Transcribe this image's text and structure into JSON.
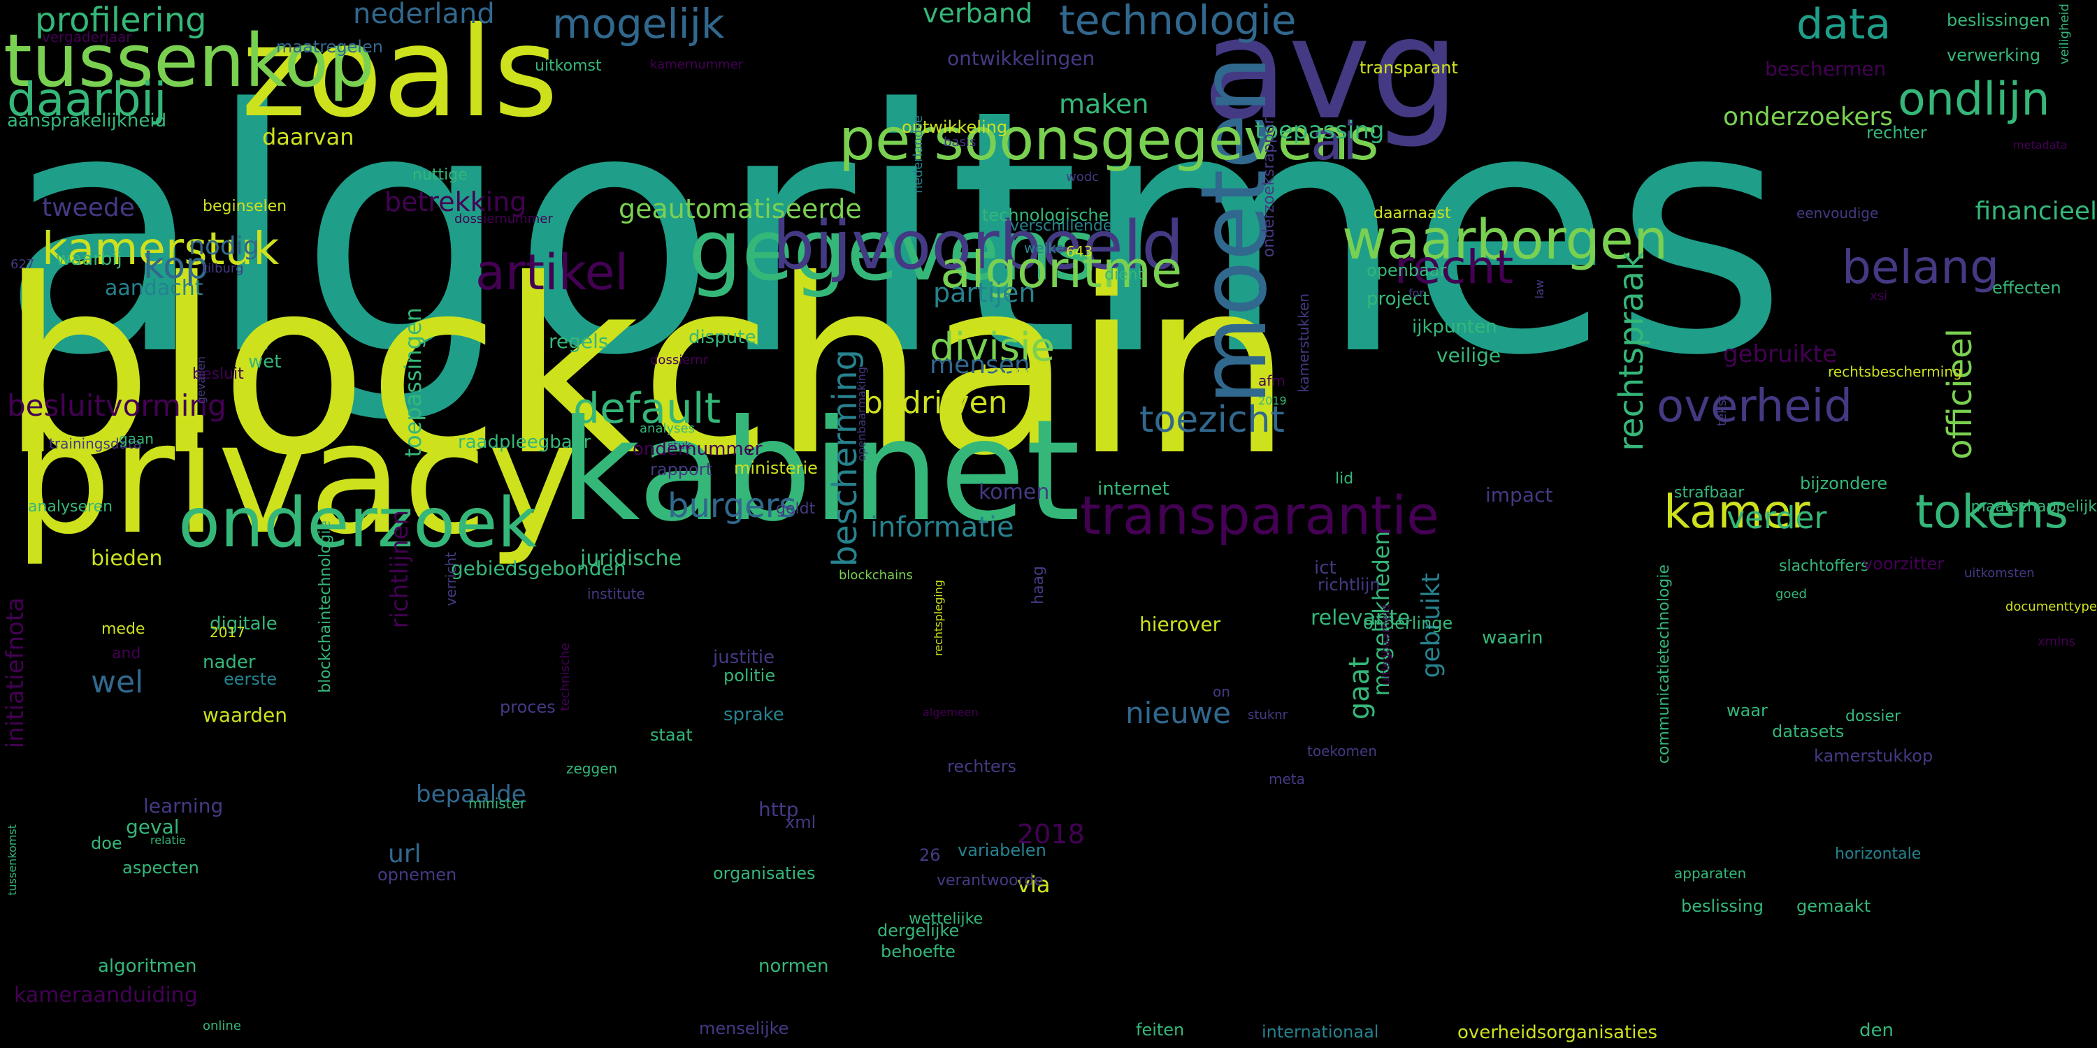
{
  "palette": {
    "yellow": "#cde11d",
    "lime": "#7ad151",
    "green": "#35b779",
    "teal": "#1f9e89",
    "cyan": "#26828e",
    "blue": "#31688e",
    "indigo": "#443a83",
    "purple": "#440154"
  },
  "words": [
    {
      "text": "algoritmes",
      "color": "teal",
      "vertical": false
    },
    {
      "text": "blockchain",
      "color": "yellow",
      "vertical": false
    },
    {
      "text": "privacy",
      "color": "yellow",
      "vertical": false
    },
    {
      "text": "kabinet",
      "color": "green",
      "vertical": false
    },
    {
      "text": "zoals",
      "color": "yellow",
      "vertical": false
    },
    {
      "text": "avg",
      "color": "indigo",
      "vertical": false
    },
    {
      "text": "tussenkop",
      "color": "lime",
      "vertical": false
    },
    {
      "text": "gegevens",
      "color": "green",
      "vertical": false
    },
    {
      "text": "bijvoorbeeld",
      "color": "indigo",
      "vertical": false
    },
    {
      "text": "moeten",
      "color": "blue",
      "vertical": true
    },
    {
      "text": "onderzoek",
      "color": "green",
      "vertical": false
    },
    {
      "text": "persoonsgegevens",
      "color": "lime",
      "vertical": false
    },
    {
      "text": "waarborgen",
      "color": "lime",
      "vertical": false
    },
    {
      "text": "transparantie",
      "color": "purple",
      "vertical": false
    },
    {
      "text": "algoritme",
      "color": "lime",
      "vertical": false
    },
    {
      "text": "kamerstuk",
      "color": "yellow",
      "vertical": false
    },
    {
      "text": "mogelijk",
      "color": "blue",
      "vertical": false
    },
    {
      "text": "technologie",
      "color": "blue",
      "vertical": false
    },
    {
      "text": "data",
      "color": "teal",
      "vertical": false
    },
    {
      "text": "ondlijn",
      "color": "green",
      "vertical": false
    },
    {
      "text": "ai",
      "color": "indigo",
      "vertical": false
    },
    {
      "text": "artikel",
      "color": "purple",
      "vertical": false
    },
    {
      "text": "recht",
      "color": "purple",
      "vertical": false
    },
    {
      "text": "belang",
      "color": "indigo",
      "vertical": false
    },
    {
      "text": "overheid",
      "color": "indigo",
      "vertical": false
    },
    {
      "text": "tokens",
      "color": "green",
      "vertical": false
    },
    {
      "text": "kamer",
      "color": "yellow",
      "vertical": false
    },
    {
      "text": "daarbij",
      "color": "green",
      "vertical": false
    },
    {
      "text": "profilering",
      "color": "green",
      "vertical": false
    },
    {
      "text": "nederland",
      "color": "blue",
      "vertical": false
    },
    {
      "text": "kop",
      "color": "blue",
      "vertical": false
    },
    {
      "text": "divisie",
      "color": "lime",
      "vertical": false
    },
    {
      "text": "default",
      "color": "green",
      "vertical": false
    },
    {
      "text": "toezicht",
      "color": "blue",
      "vertical": false
    },
    {
      "text": "burgers",
      "color": "blue",
      "vertical": false
    },
    {
      "text": "bedrijven",
      "color": "yellow",
      "vertical": false
    },
    {
      "text": "besluitvorming",
      "color": "purple",
      "vertical": false
    },
    {
      "text": "beschermen",
      "color": "purple",
      "vertical": false
    },
    {
      "text": "officieel",
      "color": "lime",
      "vertical": true
    },
    {
      "text": "bescherming",
      "color": "cyan",
      "vertical": true
    },
    {
      "text": "rechtspraak",
      "color": "green",
      "vertical": true
    },
    {
      "text": "informatie",
      "color": "cyan",
      "vertical": false
    },
    {
      "text": "verband",
      "color": "green",
      "vertical": false
    },
    {
      "text": "maken",
      "color": "green",
      "vertical": false
    },
    {
      "text": "toepassing",
      "color": "green",
      "vertical": false
    },
    {
      "text": "onderzoekers",
      "color": "lime",
      "vertical": false
    },
    {
      "text": "financieel",
      "color": "green",
      "vertical": false
    },
    {
      "text": "geautomatiseerde",
      "color": "lime",
      "vertical": false
    },
    {
      "text": "betrekking",
      "color": "purple",
      "vertical": false
    },
    {
      "text": "daarvan",
      "color": "yellow",
      "vertical": false
    },
    {
      "text": "tweede",
      "color": "indigo",
      "vertical": false
    },
    {
      "text": "nodig",
      "color": "blue",
      "vertical": false
    },
    {
      "text": "partijen",
      "color": "cyan",
      "vertical": false
    },
    {
      "text": "mensen",
      "color": "blue",
      "vertical": false
    },
    {
      "text": "gebruikte",
      "color": "purple",
      "vertical": false
    },
    {
      "text": "verder",
      "color": "green",
      "vertical": false
    },
    {
      "text": "nieuwe",
      "color": "blue",
      "vertical": false
    },
    {
      "text": "wel",
      "color": "blue",
      "vertical": false
    },
    {
      "text": "2018",
      "color": "purple",
      "vertical": false
    },
    {
      "text": "url",
      "color": "blue",
      "vertical": false
    },
    {
      "text": "via",
      "color": "yellow",
      "vertical": false
    },
    {
      "text": "bepaalde",
      "color": "blue",
      "vertical": false
    },
    {
      "text": "gaat",
      "color": "green",
      "vertical": true
    },
    {
      "text": "gebruikt",
      "color": "cyan",
      "vertical": true
    },
    {
      "text": "mogelijkheden",
      "color": "green",
      "vertical": true
    },
    {
      "text": "richtlijnen",
      "color": "purple",
      "vertical": true
    },
    {
      "text": "toepassingen",
      "color": "green",
      "vertical": true
    },
    {
      "text": "initiatiefnota",
      "color": "purple",
      "vertical": true
    },
    {
      "text": "vergaderjaar",
      "color": "purple",
      "vertical": false
    },
    {
      "text": "maatregelen",
      "color": "blue",
      "vertical": false
    },
    {
      "text": "uitkomst",
      "color": "green",
      "vertical": false
    },
    {
      "text": "kamernummer",
      "color": "purple",
      "vertical": false
    },
    {
      "text": "ontwikkelingen",
      "color": "indigo",
      "vertical": false
    },
    {
      "text": "transparant",
      "color": "yellow",
      "vertical": false
    },
    {
      "text": "beslissingen",
      "color": "green",
      "vertical": false
    },
    {
      "text": "verwerking",
      "color": "green",
      "vertical": false
    },
    {
      "text": "aansprakelijkheid",
      "color": "green",
      "vertical": false
    },
    {
      "text": "nuttige",
      "color": "green",
      "vertical": false
    },
    {
      "text": "ontwikkeling",
      "color": "yellow",
      "vertical": false
    },
    {
      "text": "basis",
      "color": "indigo",
      "vertical": false
    },
    {
      "text": "rechter",
      "color": "green",
      "vertical": false
    },
    {
      "text": "metadata",
      "color": "purple",
      "vertical": false
    },
    {
      "text": "beginselen",
      "color": "yellow",
      "vertical": false
    },
    {
      "text": "technologische",
      "color": "green",
      "vertical": false
    },
    {
      "text": "wodc",
      "color": "indigo",
      "vertical": false
    },
    {
      "text": "daarnaast",
      "color": "yellow",
      "vertical": false
    },
    {
      "text": "eenvoudige",
      "color": "indigo",
      "vertical": false
    },
    {
      "text": "dossiernummer",
      "color": "purple",
      "vertical": false
    },
    {
      "text": "verschillende",
      "color": "cyan",
      "vertical": false
    },
    {
      "text": "waarbij",
      "color": "green",
      "vertical": false
    },
    {
      "text": "tilburg",
      "color": "indigo",
      "vertical": false
    },
    {
      "text": "welke",
      "color": "cyan",
      "vertical": false
    },
    {
      "text": "643",
      "color": "yellow",
      "vertical": false
    },
    {
      "text": "dient",
      "color": "green",
      "vertical": false
    },
    {
      "text": "openbaar",
      "color": "green",
      "vertical": false
    },
    {
      "text": "project",
      "color": "green",
      "vertical": false
    },
    {
      "text": "for",
      "color": "indigo",
      "vertical": false
    },
    {
      "text": "effecten",
      "color": "green",
      "vertical": false
    },
    {
      "text": "xsi",
      "color": "purple",
      "vertical": false
    },
    {
      "text": "627",
      "color": "indigo",
      "vertical": false
    },
    {
      "text": "aandacht",
      "color": "cyan",
      "vertical": false
    },
    {
      "text": "besluit",
      "color": "purple",
      "vertical": false
    },
    {
      "text": "dossiernr",
      "color": "purple",
      "vertical": false
    },
    {
      "text": "dispute",
      "color": "green",
      "vertical": false
    },
    {
      "text": "ijkpunten",
      "color": "green",
      "vertical": false
    },
    {
      "text": "veilige",
      "color": "green",
      "vertical": false
    },
    {
      "text": "regels",
      "color": "green",
      "vertical": false
    },
    {
      "text": "kansen",
      "color": "yellow",
      "vertical": false
    },
    {
      "text": "afm",
      "color": "purple",
      "vertical": false
    },
    {
      "text": "2019",
      "color": "green",
      "vertical": false
    },
    {
      "text": "rechtsbescherming",
      "color": "yellow",
      "vertical": false
    },
    {
      "text": "wet",
      "color": "green",
      "vertical": false
    },
    {
      "text": "trainingsdata",
      "color": "indigo",
      "vertical": false
    },
    {
      "text": "gaan",
      "color": "green",
      "vertical": false
    },
    {
      "text": "raadpleegbaar",
      "color": "green",
      "vertical": false
    },
    {
      "text": "analyses",
      "color": "green",
      "vertical": false
    },
    {
      "text": "stuk",
      "color": "indigo",
      "vertical": false
    },
    {
      "text": "ondernummer",
      "color": "purple",
      "vertical": false
    },
    {
      "text": "rapport",
      "color": "indigo",
      "vertical": false
    },
    {
      "text": "ministerie",
      "color": "yellow",
      "vertical": false
    },
    {
      "text": "komen",
      "color": "indigo",
      "vertical": false
    },
    {
      "text": "internet",
      "color": "green",
      "vertical": false
    },
    {
      "text": "lid",
      "color": "green",
      "vertical": false
    },
    {
      "text": "impact",
      "color": "indigo",
      "vertical": false
    },
    {
      "text": "strafbaar",
      "color": "green",
      "vertical": false
    },
    {
      "text": "bijzondere",
      "color": "green",
      "vertical": false
    },
    {
      "text": "maatschappelijk",
      "color": "green",
      "vertical": false
    },
    {
      "text": "analyseren",
      "color": "green",
      "vertical": false
    },
    {
      "text": "geldt",
      "color": "indigo",
      "vertical": false
    },
    {
      "text": "bieden",
      "color": "yellow",
      "vertical": false
    },
    {
      "text": "gebiedsgebonden",
      "color": "green",
      "vertical": false
    },
    {
      "text": "juridische",
      "color": "green",
      "vertical": false
    },
    {
      "text": "blockchains",
      "color": "lime",
      "vertical": false
    },
    {
      "text": "ict",
      "color": "indigo",
      "vertical": false
    },
    {
      "text": "richtlijn",
      "color": "indigo",
      "vertical": false
    },
    {
      "text": "relevante",
      "color": "green",
      "vertical": false
    },
    {
      "text": "slachtoffers",
      "color": "green",
      "vertical": false
    },
    {
      "text": "uitkomsten",
      "color": "indigo",
      "vertical": false
    },
    {
      "text": "voorzitter",
      "color": "purple",
      "vertical": false
    },
    {
      "text": "institute",
      "color": "indigo",
      "vertical": false
    },
    {
      "text": "goed",
      "color": "green",
      "vertical": false
    },
    {
      "text": "documenttype",
      "color": "yellow",
      "vertical": false
    },
    {
      "text": "mede",
      "color": "yellow",
      "vertical": false
    },
    {
      "text": "digitale",
      "color": "green",
      "vertical": false
    },
    {
      "text": "2017",
      "color": "yellow",
      "vertical": false
    },
    {
      "text": "onderlinge",
      "color": "green",
      "vertical": false
    },
    {
      "text": "hierover",
      "color": "yellow",
      "vertical": false
    },
    {
      "text": "waarin",
      "color": "green",
      "vertical": false
    },
    {
      "text": "xmlns",
      "color": "purple",
      "vertical": false
    },
    {
      "text": "and",
      "color": "purple",
      "vertical": false
    },
    {
      "text": "nader",
      "color": "green",
      "vertical": false
    },
    {
      "text": "eerste",
      "color": "cyan",
      "vertical": false
    },
    {
      "text": "justitie",
      "color": "indigo",
      "vertical": false
    },
    {
      "text": "politie",
      "color": "green",
      "vertical": false
    },
    {
      "text": "on",
      "color": "indigo",
      "vertical": false
    },
    {
      "text": "waarden",
      "color": "yellow",
      "vertical": false
    },
    {
      "text": "proces",
      "color": "indigo",
      "vertical": false
    },
    {
      "text": "sprake",
      "color": "cyan",
      "vertical": false
    },
    {
      "text": "waar",
      "color": "green",
      "vertical": false
    },
    {
      "text": "dossier",
      "color": "green",
      "vertical": false
    },
    {
      "text": "datasets",
      "color": "green",
      "vertical": false
    },
    {
      "text": "staat",
      "color": "green",
      "vertical": false
    },
    {
      "text": "algemeen",
      "color": "purple",
      "vertical": false
    },
    {
      "text": "stuknr",
      "color": "indigo",
      "vertical": false
    },
    {
      "text": "toekomen",
      "color": "indigo",
      "vertical": false
    },
    {
      "text": "kamerstukkop",
      "color": "indigo",
      "vertical": false
    },
    {
      "text": "zeggen",
      "color": "green",
      "vertical": false
    },
    {
      "text": "meta",
      "color": "indigo",
      "vertical": false
    },
    {
      "text": "rechters",
      "color": "indigo",
      "vertical": false
    },
    {
      "text": "learning",
      "color": "indigo",
      "vertical": false
    },
    {
      "text": "minister",
      "color": "green",
      "vertical": false
    },
    {
      "text": "http",
      "color": "indigo",
      "vertical": false
    },
    {
      "text": "geval",
      "color": "green",
      "vertical": false
    },
    {
      "text": "relatie",
      "color": "green",
      "vertical": false
    },
    {
      "text": "xml",
      "color": "indigo",
      "vertical": false
    },
    {
      "text": "variabelen",
      "color": "cyan",
      "vertical": false
    },
    {
      "text": "horizontale",
      "color": "cyan",
      "vertical": false
    },
    {
      "text": "apparaten",
      "color": "green",
      "vertical": false
    },
    {
      "text": "doe",
      "color": "green",
      "vertical": false
    },
    {
      "text": "aspecten",
      "color": "green",
      "vertical": false
    },
    {
      "text": "26",
      "color": "indigo",
      "vertical": false
    },
    {
      "text": "opnemen",
      "color": "indigo",
      "vertical": false
    },
    {
      "text": "organisaties",
      "color": "green",
      "vertical": false
    },
    {
      "text": "verantwoorde",
      "color": "indigo",
      "vertical": false
    },
    {
      "text": "dergelijke",
      "color": "green",
      "vertical": false
    },
    {
      "text": "behoefte",
      "color": "green",
      "vertical": false
    },
    {
      "text": "beslissing",
      "color": "green",
      "vertical": false
    },
    {
      "text": "gemaakt",
      "color": "green",
      "vertical": false
    },
    {
      "text": "algoritmen",
      "color": "green",
      "vertical": false
    },
    {
      "text": "normen",
      "color": "green",
      "vertical": false
    },
    {
      "text": "wettelijke",
      "color": "green",
      "vertical": false
    },
    {
      "text": "kameraanduiding",
      "color": "purple",
      "vertical": false
    },
    {
      "text": "online",
      "color": "green",
      "vertical": false
    },
    {
      "text": "menselijke",
      "color": "indigo",
      "vertical": false
    },
    {
      "text": "feiten",
      "color": "green",
      "vertical": false
    },
    {
      "text": "internationaal",
      "color": "cyan",
      "vertical": false
    },
    {
      "text": "overheidsorganisaties",
      "color": "yellow",
      "vertical": false
    },
    {
      "text": "den",
      "color": "green",
      "vertical": false
    },
    {
      "text": "veiligheid",
      "color": "green",
      "vertical": true
    },
    {
      "text": "nederlandse",
      "color": "cyan",
      "vertical": true
    },
    {
      "text": "onderzoeksrapport",
      "color": "indigo",
      "vertical": true
    },
    {
      "text": "kamerstukken",
      "color": "indigo",
      "vertical": true
    },
    {
      "text": "law",
      "color": "indigo",
      "vertical": true
    },
    {
      "text": "tekst",
      "color": "indigo",
      "vertical": true
    },
    {
      "text": "gevallen",
      "color": "indigo",
      "vertical": true
    },
    {
      "text": "openbaarmaking",
      "color": "indigo",
      "vertical": true
    },
    {
      "text": "blockchaintechnologie",
      "color": "green",
      "vertical": true
    },
    {
      "text": "verricht",
      "color": "indigo",
      "vertical": true
    },
    {
      "text": "technische",
      "color": "purple",
      "vertical": true
    },
    {
      "text": "rechtspleging",
      "color": "yellow",
      "vertical": true
    },
    {
      "text": "haag",
      "color": "indigo",
      "vertical": true
    },
    {
      "text": "uitlegbaarheid",
      "color": "purple",
      "vertical": true
    },
    {
      "text": "communicatietechnologie",
      "color": "green",
      "vertical": true
    },
    {
      "text": "tussenkomst",
      "color": "green",
      "vertical": true
    }
  ]
}
